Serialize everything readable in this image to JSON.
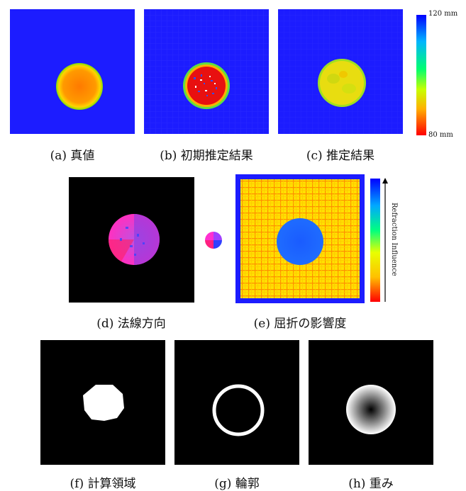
{
  "captions": {
    "a": "(a) 真値",
    "b": "(b) 初期推定結果",
    "c": "(c) 推定結果",
    "d": "(d) 法線方向",
    "e": "(e) 屈折の影響度",
    "f": "(f) 計算領域",
    "g": "(g) 輪郭",
    "h": "(h) 重み"
  },
  "colorbar_depth": {
    "top_label": "120 mm",
    "bottom_label": "80 mm",
    "colors": [
      "#0000ff",
      "#00c8ff",
      "#00ff60",
      "#ffff00",
      "#ff9000",
      "#ff0000"
    ]
  },
  "colorbar_refraction": {
    "label": "Refraction Influence",
    "colors": [
      "#ff0000",
      "#ffc000",
      "#ffff00",
      "#00ff80",
      "#00c8ff",
      "#0000ff"
    ]
  },
  "colors": {
    "background_blue": "#1c1cff",
    "truth_center": "#ff8800",
    "truth_edge": "#a0e000",
    "estimate_fill": "#e8dd10",
    "initial_fill": "#e81010"
  }
}
